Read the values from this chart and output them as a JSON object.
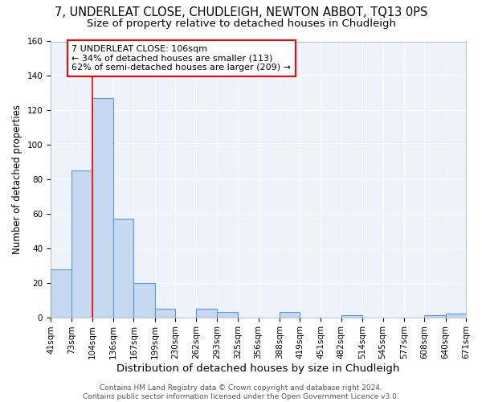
{
  "title1": "7, UNDERLEAT CLOSE, CHUDLEIGH, NEWTON ABBOT, TQ13 0PS",
  "title2": "Size of property relative to detached houses in Chudleigh",
  "xlabel": "Distribution of detached houses by size in Chudleigh",
  "ylabel": "Number of detached properties",
  "bin_edges": [
    41,
    73,
    104,
    136,
    167,
    199,
    230,
    262,
    293,
    325,
    356,
    388,
    419,
    451,
    482,
    514,
    545,
    577,
    608,
    640,
    671
  ],
  "bar_heights": [
    28,
    85,
    127,
    57,
    20,
    5,
    0,
    5,
    3,
    0,
    0,
    3,
    0,
    0,
    1,
    0,
    0,
    0,
    1,
    2
  ],
  "bar_color": "#c5d8f0",
  "bar_edge_color": "#5b9bd5",
  "red_line_x": 104,
  "ylim": [
    0,
    160
  ],
  "yticks": [
    0,
    20,
    40,
    60,
    80,
    100,
    120,
    140,
    160
  ],
  "annotation_text": "7 UNDERLEAT CLOSE: 106sqm\n← 34% of detached houses are smaller (113)\n62% of semi-detached houses are larger (209) →",
  "annotation_box_color": "white",
  "annotation_box_edge_color": "red",
  "footer_text": "Contains HM Land Registry data © Crown copyright and database right 2024.\nContains public sector information licensed under the Open Government Licence v3.0.",
  "background_color": "#eef2fb",
  "grid_color": "white",
  "title1_fontsize": 10.5,
  "title2_fontsize": 9.5,
  "xlabel_fontsize": 9.5,
  "ylabel_fontsize": 8.5,
  "tick_fontsize": 7.5,
  "annotation_fontsize": 8,
  "footer_fontsize": 6.5
}
